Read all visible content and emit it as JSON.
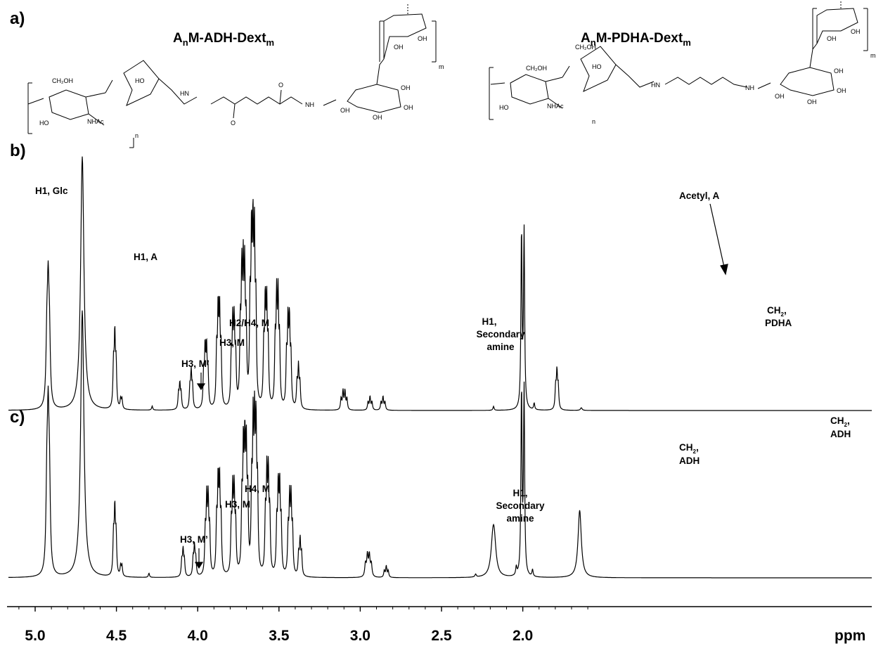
{
  "chart_data": {
    "type": "line",
    "xlabel": "ppm",
    "x_reversed": true,
    "xlim": [
      5.15,
      1.55
    ],
    "xticks": [
      "5.0",
      "4.5",
      "4.0",
      "3.5",
      "3.0",
      "2.5",
      "2.0"
    ],
    "xtick_values": [
      5.0,
      4.5,
      4.0,
      3.5,
      3.0,
      2.5,
      2.0
    ],
    "grid": false,
    "panels": [
      {
        "label": "a)"
      },
      {
        "label": "b)"
      },
      {
        "label": "c)"
      }
    ],
    "structures": [
      {
        "title_main": "A",
        "title_sub": "n",
        "title_rest": "M-ADH-Dext",
        "title_sub2": "m",
        "atoms": [
          "CH₂OH",
          "HO",
          "NHAc",
          "HO",
          "HN",
          "NH",
          "O",
          "O",
          "OH",
          "OH",
          "OH",
          "OH",
          "OH",
          "OH",
          "n",
          "m"
        ]
      },
      {
        "title_main": "A",
        "title_sub": "n",
        "title_rest": "M-PDHA-Dext",
        "title_sub2": "m",
        "atoms": [
          "CH₂OH",
          "CH₂OH",
          "HO",
          "NHAc",
          "HO",
          "HN",
          "NH",
          "OH",
          "OH",
          "OH",
          "OH",
          "OH",
          "OH",
          "n",
          "m"
        ]
      }
    ],
    "series": [
      {
        "peaks": [
          {
            "ppm": 4.92,
            "height": 0.78,
            "width": 0.006,
            "mult": 3,
            "j": 0.008
          },
          {
            "ppm": 4.71,
            "height": 1.9,
            "width": 0.012,
            "mult": 1,
            "j": 0
          },
          {
            "ppm": 4.51,
            "height": 0.52,
            "width": 0.004,
            "mult": 3,
            "j": 0.008
          },
          {
            "ppm": 4.47,
            "height": 0.12,
            "width": 0.004,
            "mult": 2,
            "j": 0.008
          },
          {
            "ppm": 4.28,
            "height": 0.03,
            "width": 0.004,
            "mult": 1,
            "j": 0
          },
          {
            "ppm": 4.11,
            "height": 0.18,
            "width": 0.004,
            "mult": 3,
            "j": 0.008
          },
          {
            "ppm": 4.04,
            "height": 0.26,
            "width": 0.004,
            "mult": 3,
            "j": 0.008
          },
          {
            "ppm": 3.95,
            "height": 0.42,
            "width": 0.004,
            "mult": 4,
            "j": 0.009
          },
          {
            "ppm": 3.87,
            "height": 0.68,
            "width": 0.004,
            "mult": 4,
            "j": 0.009
          },
          {
            "ppm": 3.78,
            "height": 0.58,
            "width": 0.004,
            "mult": 4,
            "j": 0.009
          },
          {
            "ppm": 3.72,
            "height": 0.9,
            "width": 0.004,
            "mult": 5,
            "j": 0.009
          },
          {
            "ppm": 3.66,
            "height": 1.15,
            "width": 0.004,
            "mult": 5,
            "j": 0.009
          },
          {
            "ppm": 3.58,
            "height": 0.72,
            "width": 0.004,
            "mult": 4,
            "j": 0.009
          },
          {
            "ppm": 3.51,
            "height": 0.75,
            "width": 0.004,
            "mult": 4,
            "j": 0.009
          },
          {
            "ppm": 3.44,
            "height": 0.6,
            "width": 0.004,
            "mult": 4,
            "j": 0.009
          },
          {
            "ppm": 3.38,
            "height": 0.3,
            "width": 0.004,
            "mult": 3,
            "j": 0.009
          },
          {
            "ppm": 3.1,
            "height": 0.14,
            "width": 0.004,
            "mult": 4,
            "j": 0.012
          },
          {
            "ppm": 2.94,
            "height": 0.1,
            "width": 0.004,
            "mult": 3,
            "j": 0.012
          },
          {
            "ppm": 2.86,
            "height": 0.1,
            "width": 0.004,
            "mult": 3,
            "j": 0.012
          },
          {
            "ppm": 2.18,
            "height": 0.03,
            "width": 0.004,
            "mult": 1,
            "j": 0
          },
          {
            "ppm": 2.0,
            "height": 2.2,
            "width": 0.004,
            "mult": 2,
            "j": 0.016
          },
          {
            "ppm": 1.93,
            "height": 0.05,
            "width": 0.004,
            "mult": 1,
            "j": 0
          },
          {
            "ppm": 1.79,
            "height": 0.27,
            "width": 0.004,
            "mult": 3,
            "j": 0.008
          },
          {
            "ppm": 1.64,
            "height": 0.02,
            "width": 0.006,
            "mult": 1,
            "j": 0
          }
        ]
      },
      {
        "peaks": [
          {
            "ppm": 4.92,
            "height": 0.95,
            "width": 0.006,
            "mult": 3,
            "j": 0.008
          },
          {
            "ppm": 4.71,
            "height": 1.9,
            "width": 0.012,
            "mult": 1,
            "j": 0
          },
          {
            "ppm": 4.51,
            "height": 0.45,
            "width": 0.004,
            "mult": 3,
            "j": 0.008
          },
          {
            "ppm": 4.47,
            "height": 0.12,
            "width": 0.004,
            "mult": 2,
            "j": 0.008
          },
          {
            "ppm": 4.3,
            "height": 0.03,
            "width": 0.004,
            "mult": 1,
            "j": 0
          },
          {
            "ppm": 4.09,
            "height": 0.18,
            "width": 0.004,
            "mult": 3,
            "j": 0.008
          },
          {
            "ppm": 4.02,
            "height": 0.2,
            "width": 0.004,
            "mult": 3,
            "j": 0.008
          },
          {
            "ppm": 3.94,
            "height": 0.5,
            "width": 0.004,
            "mult": 4,
            "j": 0.009
          },
          {
            "ppm": 3.87,
            "height": 0.62,
            "width": 0.004,
            "mult": 4,
            "j": 0.009
          },
          {
            "ppm": 3.78,
            "height": 0.55,
            "width": 0.004,
            "mult": 4,
            "j": 0.009
          },
          {
            "ppm": 3.71,
            "height": 0.82,
            "width": 0.004,
            "mult": 5,
            "j": 0.009
          },
          {
            "ppm": 3.65,
            "height": 0.95,
            "width": 0.004,
            "mult": 5,
            "j": 0.009
          },
          {
            "ppm": 3.57,
            "height": 0.66,
            "width": 0.004,
            "mult": 4,
            "j": 0.009
          },
          {
            "ppm": 3.5,
            "height": 0.58,
            "width": 0.004,
            "mult": 4,
            "j": 0.009
          },
          {
            "ppm": 3.43,
            "height": 0.5,
            "width": 0.004,
            "mult": 4,
            "j": 0.009
          },
          {
            "ppm": 3.37,
            "height": 0.25,
            "width": 0.004,
            "mult": 3,
            "j": 0.009
          },
          {
            "ppm": 2.95,
            "height": 0.15,
            "width": 0.005,
            "mult": 4,
            "j": 0.012
          },
          {
            "ppm": 2.84,
            "height": 0.08,
            "width": 0.004,
            "mult": 3,
            "j": 0.012
          },
          {
            "ppm": 2.29,
            "height": 0.02,
            "width": 0.005,
            "mult": 1,
            "j": 0
          },
          {
            "ppm": 2.18,
            "height": 0.34,
            "width": 0.014,
            "mult": 2,
            "j": 0.008
          },
          {
            "ppm": 2.04,
            "height": 0.06,
            "width": 0.004,
            "mult": 1,
            "j": 0
          },
          {
            "ppm": 2.0,
            "height": 2.2,
            "width": 0.004,
            "mult": 2,
            "j": 0.016
          },
          {
            "ppm": 1.94,
            "height": 0.05,
            "width": 0.004,
            "mult": 1,
            "j": 0
          },
          {
            "ppm": 1.65,
            "height": 0.48,
            "width": 0.012,
            "mult": 1,
            "j": 0
          }
        ]
      }
    ],
    "annotations": [
      {
        "panel": "b",
        "lines": [
          "H1, Glc"
        ]
      },
      {
        "panel": "b",
        "lines": [
          "H1, A"
        ]
      },
      {
        "panel": "b",
        "lines": [
          "H3, M’"
        ],
        "arrow": true
      },
      {
        "panel": "b",
        "lines": [
          "H3, M"
        ]
      },
      {
        "panel": "b",
        "lines": [
          "H2/H4, M"
        ]
      },
      {
        "panel": "b",
        "lines": [
          "H1,",
          "Secondary",
          "amine"
        ]
      },
      {
        "panel": "b",
        "lines": [
          "Acetyl, A"
        ],
        "arrow": true
      },
      {
        "panel": "b",
        "lines": [
          "CH",
          ",",
          "PDHA"
        ],
        "subscript": "2"
      },
      {
        "panel": "c",
        "lines": [
          "H3, M’"
        ],
        "arrow": true
      },
      {
        "panel": "c",
        "lines": [
          "H3, M"
        ]
      },
      {
        "panel": "c",
        "lines": [
          "H4, M"
        ]
      },
      {
        "panel": "c",
        "lines": [
          "H1,",
          "Secondary",
          "amine"
        ]
      },
      {
        "panel": "c",
        "lines": [
          "CH",
          ",",
          "ADH"
        ],
        "subscript": "2"
      },
      {
        "panel": "c",
        "lines": [
          "CH",
          ",",
          "ADH"
        ],
        "subscript": "2"
      }
    ]
  }
}
